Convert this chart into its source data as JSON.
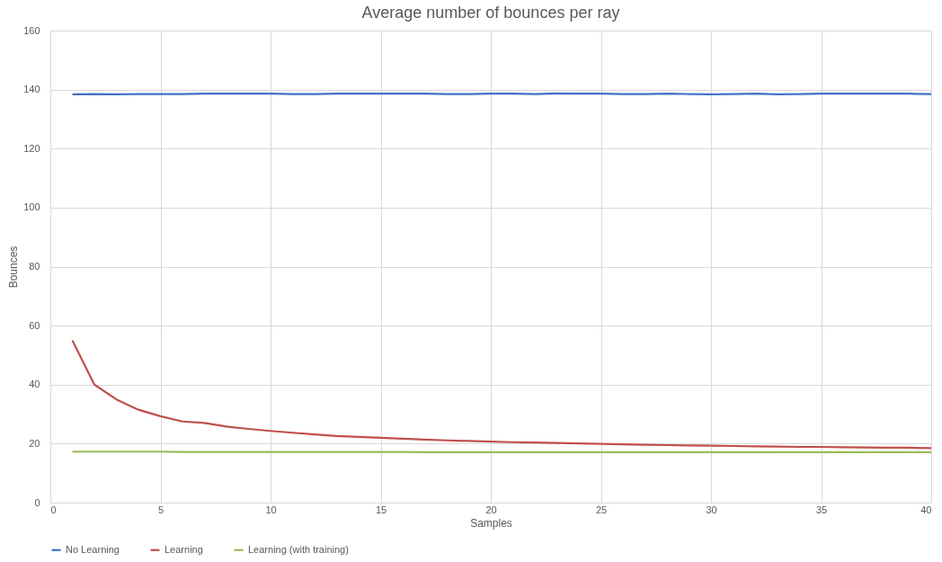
{
  "chart_data": {
    "type": "line",
    "title": "Average number of bounces per ray",
    "xlabel": "Samples",
    "ylabel": "Bounces",
    "x": [
      1,
      2,
      3,
      4,
      5,
      6,
      7,
      8,
      9,
      10,
      11,
      12,
      13,
      14,
      15,
      16,
      17,
      18,
      19,
      20,
      21,
      22,
      23,
      24,
      25,
      26,
      27,
      28,
      29,
      30,
      31,
      32,
      33,
      34,
      35,
      36,
      37,
      38,
      39,
      40
    ],
    "series": [
      {
        "name": "No Learning",
        "color": "#4472c4",
        "values": [
          138.4,
          138.5,
          138.4,
          138.5,
          138.5,
          138.5,
          138.6,
          138.6,
          138.6,
          138.6,
          138.5,
          138.5,
          138.6,
          138.6,
          138.6,
          138.6,
          138.6,
          138.5,
          138.5,
          138.6,
          138.6,
          138.5,
          138.7,
          138.6,
          138.6,
          138.5,
          138.5,
          138.6,
          138.5,
          138.4,
          138.5,
          138.6,
          138.4,
          138.5,
          138.6,
          138.6,
          138.6,
          138.6,
          138.6,
          138.5
        ]
      },
      {
        "name": "Learning",
        "color": "#c0504d",
        "values": [
          55,
          40,
          35,
          31.5,
          29.3,
          27.5,
          27,
          25.8,
          25,
          24.3,
          23.7,
          23.1,
          22.6,
          22.3,
          22,
          21.7,
          21.4,
          21.1,
          20.9,
          20.7,
          20.5,
          20.4,
          20.2,
          20.1,
          19.9,
          19.8,
          19.6,
          19.5,
          19.4,
          19.3,
          19.2,
          19.1,
          19,
          18.9,
          18.9,
          18.8,
          18.7,
          18.6,
          18.6,
          18.5
        ]
      },
      {
        "name": "Learning (with training)",
        "color": "#9bbb59",
        "values": [
          17.3,
          17.3,
          17.3,
          17.3,
          17.3,
          17.2,
          17.2,
          17.2,
          17.2,
          17.2,
          17.2,
          17.2,
          17.2,
          17.2,
          17.2,
          17.2,
          17.1,
          17.1,
          17.1,
          17.1,
          17.1,
          17.1,
          17.1,
          17.1,
          17.1,
          17.1,
          17.1,
          17.1,
          17.1,
          17.1,
          17.1,
          17.1,
          17.1,
          17.1,
          17.1,
          17.1,
          17.1,
          17.1,
          17.1,
          17.1
        ]
      }
    ],
    "xlim": [
      0,
      40
    ],
    "xticks": [
      0,
      5,
      10,
      15,
      20,
      25,
      30,
      35,
      40
    ],
    "ylim": [
      0,
      160
    ],
    "yticks": [
      0,
      20,
      40,
      60,
      80,
      100,
      120,
      140,
      160
    ],
    "grid": true,
    "legend": "bottom",
    "marker": "none",
    "line_style": "solid"
  }
}
